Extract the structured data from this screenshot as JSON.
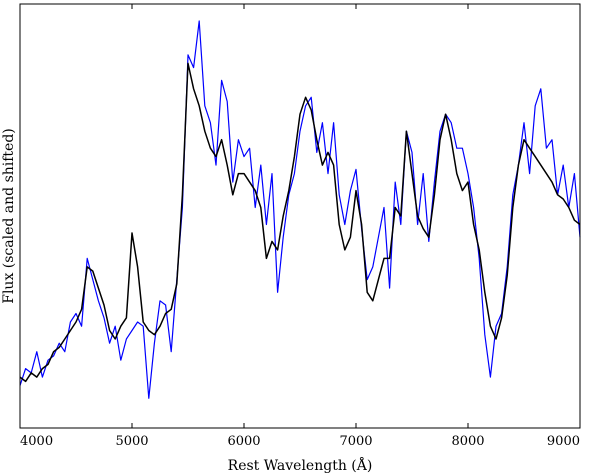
{
  "chart_data": {
    "type": "line",
    "xlabel": "Rest Wavelength (Å)",
    "ylabel": "Flux (scaled and shifted)",
    "xlim": [
      4000,
      9000
    ],
    "ylim": [
      0,
      1
    ],
    "xticks": [
      4000,
      5000,
      6000,
      7000,
      8000,
      9000
    ],
    "grid": false,
    "legend": "none",
    "colors": {
      "observed": "#0000ff",
      "model": "#000000"
    },
    "series": [
      {
        "x": [
          4000,
          4050,
          4100,
          4150,
          4200,
          4250,
          4300,
          4350,
          4400,
          4450,
          4500,
          4550,
          4600,
          4650,
          4700,
          4750,
          4800,
          4850,
          4900,
          4950,
          5000,
          5050,
          5100,
          5150,
          5200,
          5250,
          5300,
          5350,
          5400,
          5450,
          5500,
          5550,
          5600,
          5650,
          5700,
          5750,
          5800,
          5850,
          5900,
          5950,
          6000,
          6050,
          6100,
          6150,
          6200,
          6250,
          6300,
          6350,
          6400,
          6450,
          6500,
          6550,
          6600,
          6650,
          6700,
          6750,
          6800,
          6850,
          6900,
          6950,
          7000,
          7050,
          7100,
          7150,
          7200,
          7250,
          7300,
          7350,
          7400,
          7450,
          7500,
          7550,
          7600,
          7650,
          7700,
          7750,
          7800,
          7850,
          7900,
          7950,
          8000,
          8050,
          8100,
          8150,
          8200,
          8250,
          8300,
          8350,
          8400,
          8450,
          8500,
          8550,
          8600,
          8650,
          8700,
          8750,
          8800,
          8850,
          8900,
          8950,
          9000
        ],
        "values": [
          0.1,
          0.14,
          0.13,
          0.18,
          0.12,
          0.16,
          0.17,
          0.2,
          0.18,
          0.25,
          0.27,
          0.24,
          0.4,
          0.35,
          0.3,
          0.26,
          0.2,
          0.24,
          0.16,
          0.21,
          0.23,
          0.25,
          0.24,
          0.07,
          0.2,
          0.3,
          0.29,
          0.18,
          0.35,
          0.52,
          0.88,
          0.85,
          0.96,
          0.76,
          0.72,
          0.62,
          0.82,
          0.77,
          0.58,
          0.68,
          0.64,
          0.66,
          0.52,
          0.62,
          0.48,
          0.6,
          0.32,
          0.45,
          0.55,
          0.6,
          0.7,
          0.76,
          0.78,
          0.65,
          0.72,
          0.6,
          0.72,
          0.55,
          0.48,
          0.56,
          0.61,
          0.47,
          0.35,
          0.38,
          0.45,
          0.52,
          0.33,
          0.58,
          0.48,
          0.7,
          0.65,
          0.48,
          0.6,
          0.44,
          0.58,
          0.7,
          0.74,
          0.72,
          0.66,
          0.66,
          0.6,
          0.52,
          0.4,
          0.22,
          0.12,
          0.24,
          0.27,
          0.38,
          0.55,
          0.62,
          0.72,
          0.6,
          0.76,
          0.8,
          0.66,
          0.68,
          0.55,
          0.62,
          0.52,
          0.6,
          0.45
        ]
      },
      {
        "x": [
          4000,
          4050,
          4100,
          4150,
          4200,
          4250,
          4300,
          4350,
          4400,
          4450,
          4500,
          4550,
          4600,
          4650,
          4700,
          4750,
          4800,
          4850,
          4900,
          4950,
          5000,
          5050,
          5100,
          5150,
          5200,
          5250,
          5300,
          5350,
          5400,
          5450,
          5500,
          5550,
          5600,
          5650,
          5700,
          5750,
          5800,
          5850,
          5900,
          5950,
          6000,
          6050,
          6100,
          6150,
          6200,
          6250,
          6300,
          6350,
          6400,
          6450,
          6500,
          6550,
          6600,
          6650,
          6700,
          6750,
          6800,
          6850,
          6900,
          6950,
          7000,
          7050,
          7100,
          7150,
          7200,
          7250,
          7300,
          7350,
          7400,
          7450,
          7500,
          7550,
          7600,
          7650,
          7700,
          7750,
          7800,
          7850,
          7900,
          7950,
          8000,
          8050,
          8100,
          8150,
          8200,
          8250,
          8300,
          8350,
          8400,
          8450,
          8500,
          8550,
          8600,
          8650,
          8700,
          8750,
          8800,
          8850,
          8900,
          8950,
          9000
        ],
        "values": [
          0.12,
          0.11,
          0.13,
          0.12,
          0.14,
          0.15,
          0.18,
          0.19,
          0.21,
          0.23,
          0.25,
          0.28,
          0.38,
          0.37,
          0.33,
          0.29,
          0.23,
          0.21,
          0.24,
          0.26,
          0.46,
          0.38,
          0.25,
          0.23,
          0.22,
          0.24,
          0.27,
          0.28,
          0.34,
          0.55,
          0.86,
          0.8,
          0.76,
          0.7,
          0.66,
          0.64,
          0.68,
          0.62,
          0.55,
          0.6,
          0.6,
          0.58,
          0.56,
          0.52,
          0.4,
          0.44,
          0.42,
          0.5,
          0.56,
          0.64,
          0.74,
          0.78,
          0.75,
          0.68,
          0.62,
          0.65,
          0.62,
          0.48,
          0.42,
          0.45,
          0.56,
          0.48,
          0.32,
          0.3,
          0.35,
          0.4,
          0.4,
          0.52,
          0.5,
          0.7,
          0.6,
          0.5,
          0.47,
          0.45,
          0.55,
          0.68,
          0.74,
          0.68,
          0.6,
          0.56,
          0.58,
          0.48,
          0.42,
          0.32,
          0.24,
          0.21,
          0.26,
          0.36,
          0.52,
          0.62,
          0.68,
          0.66,
          0.64,
          0.62,
          0.6,
          0.58,
          0.55,
          0.54,
          0.52,
          0.49,
          0.48
        ]
      }
    ]
  }
}
